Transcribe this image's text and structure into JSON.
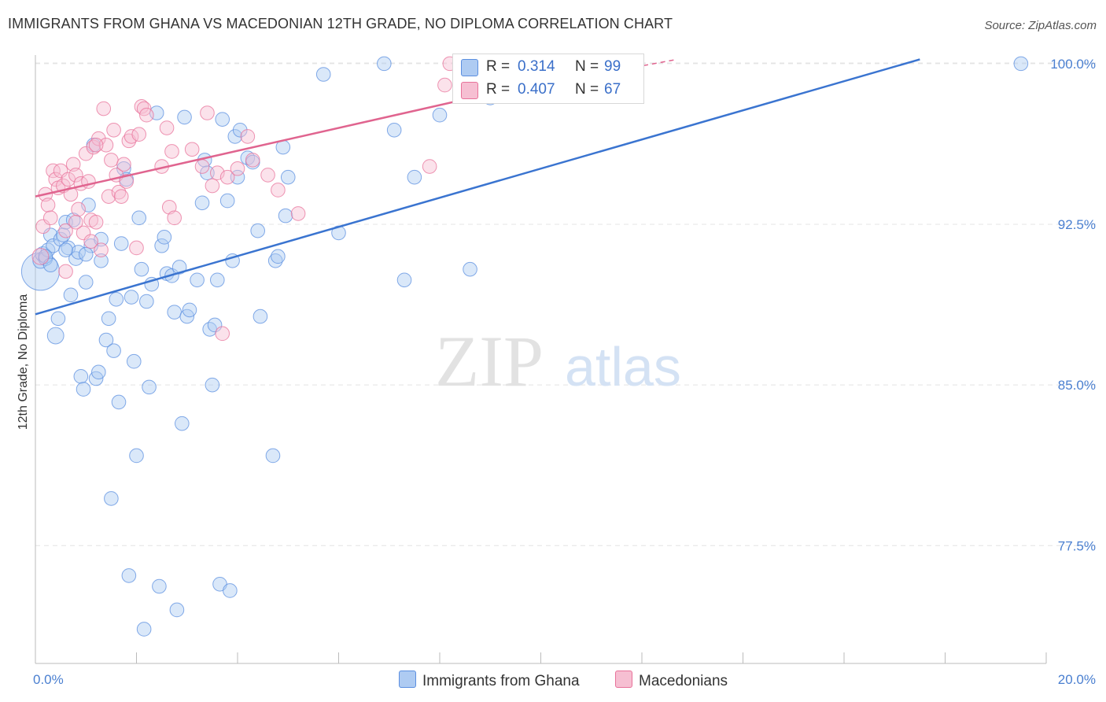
{
  "title": "IMMIGRANTS FROM GHANA VS MACEDONIAN 12TH GRADE, NO DIPLOMA CORRELATION CHART",
  "source": "Source: ZipAtlas.com",
  "watermark": {
    "zip": "ZIP",
    "atlas": "atlas"
  },
  "colors": {
    "blue": "#5b8fe0",
    "blue_fill": "#aecbf2",
    "pink": "#e8729a",
    "pink_fill": "#f6bfd2",
    "tick": "#4a7fd0"
  },
  "legend": [
    {
      "r_label": "R =",
      "r_value": "0.314",
      "n_label": "N =",
      "n_value": "99"
    },
    {
      "r_label": "R =",
      "r_value": "0.407",
      "n_label": "N =",
      "n_value": "67"
    }
  ],
  "bottom_legend": {
    "series1": "Immigrants from Ghana",
    "series2": "Macedonians"
  },
  "chart_data": {
    "type": "scatter",
    "title": "IMMIGRANTS FROM GHANA VS MACEDONIAN 12TH GRADE, NO DIPLOMA CORRELATION CHART",
    "xlabel": "",
    "ylabel": "12th Grade, No Diploma",
    "xlim": [
      0,
      20
    ],
    "ylim": [
      72,
      100.4
    ],
    "x_tick_labels": [
      "0.0%",
      "20.0%"
    ],
    "y_ticks": [
      77.5,
      85.0,
      92.5,
      100.0
    ],
    "y_tick_labels": [
      "77.5%",
      "85.0%",
      "92.5%",
      "100.0%"
    ],
    "grid": true,
    "legend_position": "top-center",
    "series": [
      {
        "name": "Immigrants from Ghana",
        "color": "#5b8fe0",
        "trend": {
          "x": [
            0,
            17.5
          ],
          "y": [
            88.3,
            100.2
          ]
        },
        "points": [
          [
            0.1,
            90.3
          ],
          [
            0.1,
            90.8
          ],
          [
            0.15,
            91.1
          ],
          [
            0.2,
            90.9
          ],
          [
            0.25,
            91.3
          ],
          [
            0.3,
            92.0
          ],
          [
            0.35,
            91.5
          ],
          [
            0.4,
            87.3
          ],
          [
            0.45,
            88.1
          ],
          [
            0.5,
            91.8
          ],
          [
            0.55,
            92.0
          ],
          [
            0.6,
            92.6
          ],
          [
            0.65,
            91.4
          ],
          [
            0.7,
            89.2
          ],
          [
            0.75,
            92.7
          ],
          [
            0.8,
            90.9
          ],
          [
            0.85,
            91.2
          ],
          [
            0.9,
            85.4
          ],
          [
            0.95,
            84.8
          ],
          [
            1.0,
            89.8
          ],
          [
            1.05,
            93.4
          ],
          [
            1.1,
            91.5
          ],
          [
            1.15,
            96.2
          ],
          [
            1.2,
            85.3
          ],
          [
            1.25,
            85.6
          ],
          [
            1.3,
            91.8
          ],
          [
            1.4,
            87.1
          ],
          [
            1.45,
            88.1
          ],
          [
            1.5,
            79.7
          ],
          [
            1.55,
            86.6
          ],
          [
            1.6,
            89.0
          ],
          [
            1.65,
            84.2
          ],
          [
            1.7,
            91.6
          ],
          [
            1.75,
            95.1
          ],
          [
            1.8,
            94.6
          ],
          [
            1.85,
            76.1
          ],
          [
            1.9,
            89.1
          ],
          [
            1.95,
            86.1
          ],
          [
            2.0,
            81.7
          ],
          [
            2.05,
            92.8
          ],
          [
            2.1,
            90.4
          ],
          [
            2.15,
            73.6
          ],
          [
            2.2,
            88.9
          ],
          [
            2.25,
            84.9
          ],
          [
            2.3,
            89.7
          ],
          [
            2.4,
            97.7
          ],
          [
            2.45,
            75.6
          ],
          [
            2.5,
            91.5
          ],
          [
            2.55,
            91.9
          ],
          [
            2.6,
            90.2
          ],
          [
            2.7,
            90.1
          ],
          [
            2.75,
            88.4
          ],
          [
            2.8,
            74.5
          ],
          [
            2.85,
            90.5
          ],
          [
            2.9,
            83.2
          ],
          [
            2.95,
            97.5
          ],
          [
            3.0,
            88.2
          ],
          [
            3.05,
            88.5
          ],
          [
            3.2,
            89.9
          ],
          [
            3.3,
            93.5
          ],
          [
            3.35,
            95.5
          ],
          [
            3.4,
            94.9
          ],
          [
            3.45,
            87.6
          ],
          [
            3.5,
            85.0
          ],
          [
            3.55,
            87.8
          ],
          [
            3.6,
            89.9
          ],
          [
            3.65,
            75.7
          ],
          [
            3.7,
            97.4
          ],
          [
            3.8,
            93.6
          ],
          [
            3.85,
            75.4
          ],
          [
            3.9,
            90.8
          ],
          [
            3.95,
            96.6
          ],
          [
            4.0,
            94.7
          ],
          [
            4.05,
            96.9
          ],
          [
            4.2,
            95.6
          ],
          [
            4.3,
            95.4
          ],
          [
            4.4,
            92.2
          ],
          [
            4.45,
            88.2
          ],
          [
            4.7,
            81.7
          ],
          [
            4.75,
            90.8
          ],
          [
            4.8,
            91.0
          ],
          [
            4.9,
            96.1
          ],
          [
            4.95,
            92.9
          ],
          [
            5.0,
            94.7
          ],
          [
            5.7,
            99.5
          ],
          [
            6.0,
            92.1
          ],
          [
            6.9,
            100.0
          ],
          [
            7.1,
            96.9
          ],
          [
            7.3,
            89.9
          ],
          [
            7.5,
            94.7
          ],
          [
            8.0,
            97.6
          ],
          [
            8.6,
            90.4
          ],
          [
            9.0,
            98.4
          ],
          [
            19.5,
            100.0
          ],
          [
            0.2,
            91.0
          ],
          [
            0.3,
            90.6
          ],
          [
            1.0,
            91.1
          ],
          [
            1.3,
            90.8
          ],
          [
            0.6,
            91.3
          ]
        ],
        "sizes": [
          30,
          12,
          12,
          11,
          11,
          11,
          11,
          13,
          11,
          11,
          11,
          11,
          11,
          11,
          11,
          11,
          11,
          11,
          11,
          11,
          11,
          11,
          11,
          11,
          11,
          11,
          11,
          11,
          11,
          11,
          11,
          11,
          11,
          11,
          11,
          11,
          11,
          11,
          11,
          11,
          11,
          11,
          11,
          11,
          11,
          11,
          11,
          11,
          11,
          11,
          11,
          11,
          11,
          11,
          11,
          11,
          11,
          11,
          11,
          11,
          11,
          11,
          11,
          11,
          11,
          11,
          11,
          11,
          11,
          11,
          11,
          11,
          11,
          11,
          11,
          11,
          11,
          11,
          11,
          11,
          11,
          11,
          11,
          11,
          11,
          11,
          11,
          11,
          11,
          11,
          11,
          11,
          11,
          11,
          11,
          11,
          11,
          11,
          11
        ]
      },
      {
        "name": "Macedonians",
        "color": "#e8729a",
        "trend": {
          "x": [
            0,
            9.0
          ],
          "y": [
            93.8,
            98.6
          ]
        },
        "trend_dashed": {
          "x": [
            9.0,
            12.7
          ],
          "y": [
            98.6,
            100.2
          ]
        },
        "points": [
          [
            0.1,
            91.0
          ],
          [
            0.15,
            92.4
          ],
          [
            0.2,
            93.9
          ],
          [
            0.25,
            93.4
          ],
          [
            0.3,
            92.8
          ],
          [
            0.35,
            95.0
          ],
          [
            0.4,
            94.6
          ],
          [
            0.45,
            94.2
          ],
          [
            0.5,
            95.0
          ],
          [
            0.55,
            94.3
          ],
          [
            0.6,
            92.2
          ],
          [
            0.65,
            94.6
          ],
          [
            0.7,
            93.9
          ],
          [
            0.75,
            95.3
          ],
          [
            0.8,
            94.8
          ],
          [
            0.85,
            93.2
          ],
          [
            0.9,
            94.4
          ],
          [
            0.95,
            92.1
          ],
          [
            1.0,
            95.8
          ],
          [
            1.05,
            94.5
          ],
          [
            1.1,
            92.7
          ],
          [
            1.15,
            96.1
          ],
          [
            1.2,
            92.6
          ],
          [
            1.25,
            96.5
          ],
          [
            1.3,
            91.3
          ],
          [
            1.35,
            97.9
          ],
          [
            1.4,
            96.2
          ],
          [
            1.45,
            93.8
          ],
          [
            1.5,
            95.5
          ],
          [
            1.55,
            96.9
          ],
          [
            1.6,
            94.8
          ],
          [
            1.65,
            94.0
          ],
          [
            1.7,
            93.8
          ],
          [
            1.75,
            95.3
          ],
          [
            1.85,
            96.4
          ],
          [
            1.9,
            96.6
          ],
          [
            2.0,
            91.4
          ],
          [
            2.05,
            96.7
          ],
          [
            2.1,
            98.0
          ],
          [
            2.15,
            97.9
          ],
          [
            2.2,
            97.6
          ],
          [
            2.6,
            97.0
          ],
          [
            2.65,
            93.3
          ],
          [
            2.7,
            95.9
          ],
          [
            2.75,
            92.8
          ],
          [
            3.1,
            96.0
          ],
          [
            3.3,
            95.2
          ],
          [
            3.4,
            97.7
          ],
          [
            3.5,
            94.3
          ],
          [
            3.6,
            94.9
          ],
          [
            3.7,
            87.4
          ],
          [
            3.8,
            94.7
          ],
          [
            4.0,
            95.1
          ],
          [
            4.2,
            96.6
          ],
          [
            4.3,
            95.5
          ],
          [
            4.6,
            94.8
          ],
          [
            4.8,
            94.1
          ],
          [
            5.2,
            93.0
          ],
          [
            7.8,
            95.2
          ],
          [
            8.1,
            99.0
          ],
          [
            8.2,
            100.0
          ],
          [
            0.6,
            90.3
          ],
          [
            0.8,
            92.6
          ],
          [
            1.1,
            91.7
          ],
          [
            1.2,
            96.2
          ],
          [
            1.8,
            94.5
          ],
          [
            2.5,
            95.2
          ]
        ],
        "sizes": [
          13,
          11,
          11,
          11,
          11,
          11,
          11,
          11,
          11,
          11,
          11,
          11,
          11,
          11,
          11,
          11,
          11,
          11,
          11,
          11,
          11,
          11,
          11,
          11,
          11,
          11,
          11,
          11,
          11,
          11,
          11,
          11,
          11,
          11,
          11,
          11,
          11,
          11,
          11,
          11,
          11,
          11,
          11,
          11,
          11,
          11,
          11,
          11,
          11,
          11,
          11,
          11,
          11,
          11,
          11,
          11,
          11,
          11,
          11,
          11,
          11,
          11,
          11,
          11,
          11,
          11,
          11
        ]
      }
    ]
  }
}
